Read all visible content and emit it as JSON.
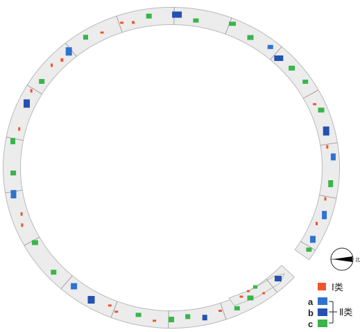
{
  "colors": {
    "background": "#ffffff",
    "ring_fill": "#ececec",
    "ring_edge": "#b9b9b9",
    "joint": "#9a9a9a",
    "class_I": "#f0562a",
    "class_IIa": "#2f73cf",
    "class_IIb": "#2552b0",
    "class_IIc": "#39b54a"
  },
  "compass": {
    "icon": "north-arrow-icon",
    "label": "北"
  },
  "legend": {
    "class_I": "Ⅰ类",
    "class_II": "Ⅱ类",
    "a": "a",
    "b": "b",
    "c": "c"
  }
}
